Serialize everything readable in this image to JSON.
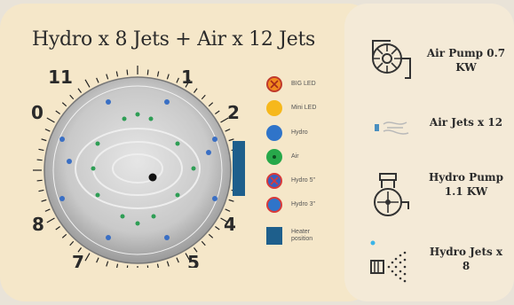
{
  "title": "Hydro x 8 Jets + Air x 12 Jets",
  "clock_numbers": [
    "11",
    "1",
    "2",
    "4",
    "5",
    "7",
    "8",
    "0"
  ],
  "legend": [
    {
      "label": "BIG LED",
      "color": "#f28a1e",
      "icon": "big-led-icon"
    },
    {
      "label": "Mini LED",
      "color": "#f6b81c",
      "icon": "mini-led-icon"
    },
    {
      "label": "Hydro",
      "color": "#2f74c9",
      "icon": "hydro-jet-icon"
    },
    {
      "label": "Air",
      "color": "#27a84a",
      "icon": "air-jet-icon"
    },
    {
      "label": "Hydro 5\"",
      "color": "#d83a3a",
      "icon": "hydro-5-icon"
    },
    {
      "label": "Hydro 3\"",
      "color": "#d83a3a",
      "icon": "hydro-3-icon"
    },
    {
      "label": "Heater position",
      "color": "#1e5f8c",
      "icon": "heater-icon"
    }
  ],
  "features": [
    {
      "label": "Air Pump 0.7 KW",
      "icon": "air-pump-icon"
    },
    {
      "label": "Air Jets x 12",
      "icon": "air-jet-icon"
    },
    {
      "label": "Hydro Pump 1.1 KW",
      "icon": "hydro-pump-icon"
    },
    {
      "label": "Hydro Jets x 8",
      "icon": "spray-icon"
    }
  ]
}
